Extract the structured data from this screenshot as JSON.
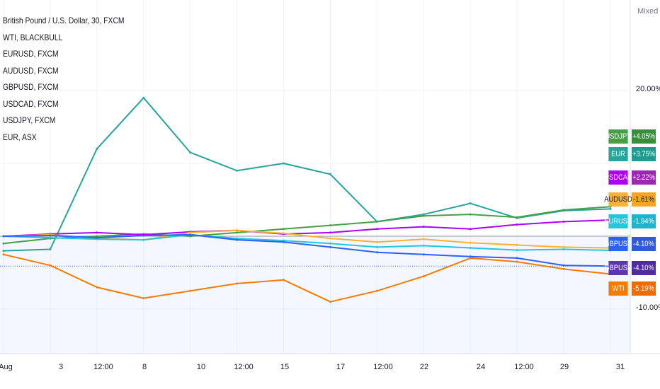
{
  "legend": {
    "items": [
      "British Pound / U.S. Dollar, 30, FXCM",
      "WTI, BLACKBULL",
      "EURUSD, FXCM",
      "AUDUSD, FXCM",
      "GBPUSD, FXCM",
      "USDCAD, FXCM",
      "USDJPY, FXCM",
      "EUR, ASX"
    ]
  },
  "price_axis": {
    "mode_label": "Mixed",
    "ticks": [
      "20.00%",
      "-10.00%"
    ]
  },
  "time_axis": {
    "ticks": [
      "Aug",
      "3",
      "12:00",
      "8",
      "10",
      "12:00",
      "15",
      "17",
      "12:00",
      "22",
      "24",
      "12:00",
      "29",
      "31"
    ]
  },
  "badges": [
    {
      "symbol": "USDJPY",
      "value": "+4.05%",
      "color": "#43a047",
      "valueColor": "#388e3c"
    },
    {
      "symbol": "EUR",
      "value": "+3.75%",
      "color": "#26a69a",
      "valueColor": "#1f9a8f"
    },
    {
      "symbol": "USDCAD",
      "value": "+2.22%",
      "color": "#aa00ff",
      "valueColor": "#9c27b0"
    },
    {
      "symbol": "AUDUSD",
      "value": "-1.61%",
      "color": "#f9b233",
      "valueColor": "#f6a623"
    },
    {
      "symbol": "EURUSD",
      "value": "-1.94%",
      "color": "#26c6da",
      "valueColor": "#1eb5cc"
    },
    {
      "symbol": "GBPUSD",
      "value": "-4.10%",
      "color": "#2962ff",
      "valueColor": "#2f5bd8"
    },
    {
      "symbol": "GBPUSD",
      "value": "-4.10%",
      "color": "#5e35b1",
      "valueColor": "#4f2aa0"
    },
    {
      "symbol": "WTI",
      "value": "-5.19%",
      "color": "#f57c00",
      "valueColor": "#ef6c00"
    }
  ],
  "chart_data": {
    "type": "line",
    "title": "British Pound / U.S. Dollar, 30, FXCM",
    "xlabel": "",
    "ylabel": "",
    "x": [
      "Aug",
      "3",
      "12:00",
      "8",
      "10",
      "12:00",
      "15",
      "17",
      "12:00",
      "22",
      "24",
      "12:00",
      "29",
      "31"
    ],
    "ylim": [
      -14,
      26
    ],
    "grid": true,
    "series": [
      {
        "name": "EUR",
        "color": "#26a69a",
        "values": [
          -2.0,
          -1.8,
          12.0,
          19.0,
          11.5,
          9.0,
          10.0,
          8.5,
          2.0,
          3.0,
          4.5,
          2.5,
          3.5,
          3.75
        ]
      },
      {
        "name": "USDJPY",
        "color": "#43a047",
        "values": [
          -1.0,
          -0.3,
          0.0,
          0.3,
          0.0,
          0.5,
          1.0,
          1.5,
          2.0,
          2.8,
          3.0,
          2.6,
          3.6,
          4.05
        ]
      },
      {
        "name": "USDCAD",
        "color": "#aa00ff",
        "values": [
          0.0,
          0.3,
          0.5,
          0.2,
          0.6,
          0.8,
          0.3,
          0.5,
          1.0,
          1.3,
          1.0,
          1.6,
          2.0,
          2.22
        ]
      },
      {
        "name": "AUDUSD",
        "color": "#f9b233",
        "values": [
          0.0,
          0.2,
          -0.3,
          -0.5,
          0.5,
          0.8,
          0.4,
          -0.3,
          -0.8,
          -0.4,
          -0.9,
          -1.2,
          -1.5,
          -1.61
        ]
      },
      {
        "name": "EURUSD",
        "color": "#26c6da",
        "values": [
          0.0,
          -0.2,
          -0.4,
          -0.5,
          0.2,
          -0.3,
          -0.6,
          -1.0,
          -1.5,
          -1.3,
          -1.6,
          -1.9,
          -1.8,
          -1.94
        ]
      },
      {
        "name": "GBPUSD",
        "color": "#2962ff",
        "values": [
          0.0,
          0.1,
          -0.2,
          0.1,
          0.2,
          -0.5,
          -0.8,
          -1.5,
          -2.2,
          -2.5,
          -2.8,
          -3.0,
          -4.0,
          -4.1
        ]
      },
      {
        "name": "WTI",
        "color": "#f57c00",
        "values": [
          -2.5,
          -4.0,
          -7.0,
          -8.5,
          -7.5,
          -6.5,
          -6.0,
          -9.0,
          -7.5,
          -5.5,
          -3.0,
          -3.5,
          -4.5,
          -5.19
        ]
      }
    ]
  }
}
